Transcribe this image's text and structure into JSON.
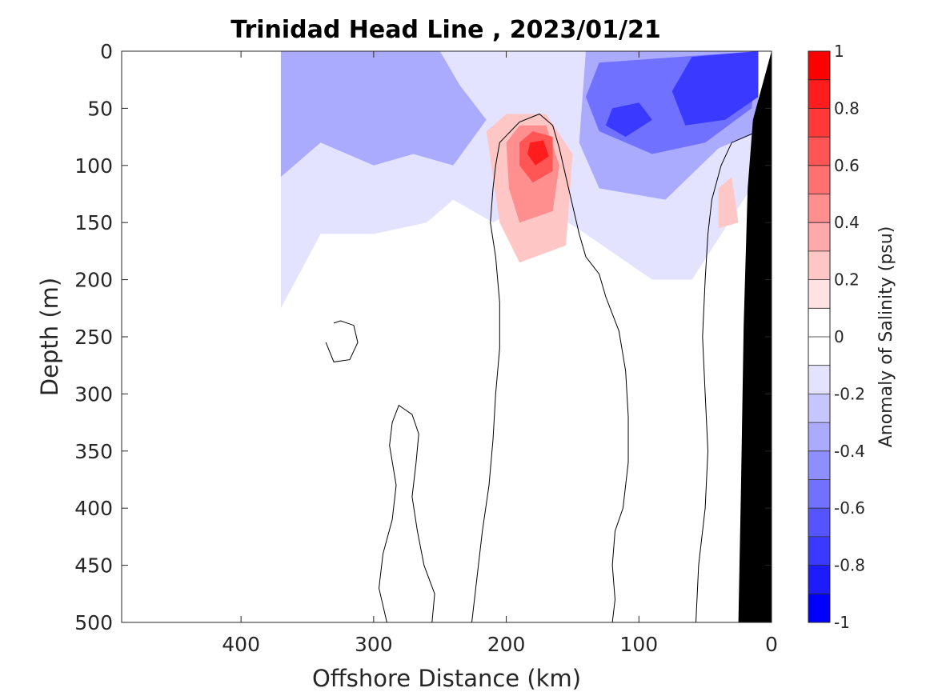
{
  "chart_data": {
    "type": "contour",
    "title": "Trinidad Head Line , 2023/01/21",
    "xlabel": "Offshore Distance (km)",
    "ylabel": "Depth (m)",
    "colorbar_label": "Anomaly of Salinity (psu)",
    "xlim": [
      490,
      0
    ],
    "ylim": [
      0,
      500
    ],
    "x_reversed": true,
    "y_reversed": true,
    "x_ticks": [
      400,
      300,
      200,
      100,
      0
    ],
    "y_ticks": [
      0,
      50,
      100,
      150,
      200,
      250,
      300,
      350,
      400,
      450,
      500
    ],
    "colorbar": {
      "range": [
        -1,
        1
      ],
      "ticks": [
        1,
        0.8,
        0.6,
        0.4,
        0.2,
        0,
        -0.2,
        -0.4,
        -0.6,
        -0.8,
        -1
      ],
      "colors": [
        "#0000ff",
        "#1c1cff",
        "#3939ff",
        "#5555ff",
        "#7171ff",
        "#8e8eff",
        "#aaaaff",
        "#c6c6ff",
        "#e3e3ff",
        "#ffffff",
        "#ffffff",
        "#ffe3e3",
        "#ffc6c6",
        "#ffaaaa",
        "#ff8e8e",
        "#ff7171",
        "#ff5555",
        "#ff3939",
        "#ff1c1c",
        "#ff0000"
      ]
    },
    "data_extent_x": [
      370,
      0
    ],
    "fill_regions": [
      {
        "level": -0.2,
        "points": [
          [
            370,
            0
          ],
          [
            10,
            0
          ],
          [
            10,
            110
          ],
          [
            60,
            200
          ],
          [
            90,
            200
          ],
          [
            140,
            160
          ],
          [
            180,
            130
          ],
          [
            210,
            150
          ],
          [
            240,
            130
          ],
          [
            260,
            150
          ],
          [
            300,
            160
          ],
          [
            340,
            160
          ],
          [
            370,
            225
          ]
        ]
      },
      {
        "level": -0.4,
        "points": [
          [
            370,
            0
          ],
          [
            250,
            0
          ],
          [
            235,
            30
          ],
          [
            215,
            60
          ],
          [
            240,
            100
          ],
          [
            270,
            90
          ],
          [
            300,
            100
          ],
          [
            340,
            80
          ],
          [
            370,
            110
          ]
        ]
      },
      {
        "level": -0.4,
        "points": [
          [
            140,
            0
          ],
          [
            10,
            0
          ],
          [
            10,
            70
          ],
          [
            40,
            85
          ],
          [
            80,
            130
          ],
          [
            130,
            120
          ],
          [
            145,
            80
          ]
        ]
      },
      {
        "level": -0.6,
        "points": [
          [
            130,
            10
          ],
          [
            10,
            0
          ],
          [
            15,
            50
          ],
          [
            50,
            80
          ],
          [
            90,
            90
          ],
          [
            130,
            70
          ],
          [
            140,
            40
          ]
        ]
      },
      {
        "level": -0.8,
        "points": [
          [
            120,
            50
          ],
          [
            100,
            45
          ],
          [
            90,
            60
          ],
          [
            110,
            75
          ],
          [
            125,
            65
          ]
        ]
      },
      {
        "level": -0.8,
        "points": [
          [
            60,
            5
          ],
          [
            10,
            0
          ],
          [
            10,
            40
          ],
          [
            35,
            60
          ],
          [
            65,
            65
          ],
          [
            75,
            35
          ]
        ]
      },
      {
        "level": 0.2,
        "points": [
          [
            215,
            70
          ],
          [
            200,
            55
          ],
          [
            170,
            55
          ],
          [
            150,
            90
          ],
          [
            155,
            170
          ],
          [
            190,
            185
          ],
          [
            205,
            150
          ]
        ]
      },
      {
        "level": 0.4,
        "points": [
          [
            200,
            80
          ],
          [
            190,
            65
          ],
          [
            170,
            65
          ],
          [
            160,
            100
          ],
          [
            165,
            140
          ],
          [
            190,
            150
          ],
          [
            198,
            120
          ]
        ]
      },
      {
        "level": 0.6,
        "points": [
          [
            190,
            80
          ],
          [
            180,
            70
          ],
          [
            165,
            75
          ],
          [
            165,
            105
          ],
          [
            180,
            115
          ],
          [
            190,
            100
          ]
        ]
      },
      {
        "level": 0.8,
        "points": [
          [
            182,
            80
          ],
          [
            172,
            78
          ],
          [
            168,
            92
          ],
          [
            178,
            100
          ],
          [
            184,
            90
          ]
        ]
      },
      {
        "level": 0.2,
        "points": [
          [
            40,
            120
          ],
          [
            30,
            110
          ],
          [
            25,
            150
          ],
          [
            40,
            155
          ]
        ]
      }
    ],
    "zero_contours": [
      {
        "points": [
          [
            330,
            238
          ],
          [
            325,
            236
          ],
          [
            315,
            240
          ],
          [
            312,
            255
          ],
          [
            318,
            270
          ],
          [
            330,
            272
          ],
          [
            336,
            255
          ]
        ]
      },
      {
        "points": [
          [
            290,
            500
          ],
          [
            296,
            470
          ],
          [
            293,
            440
          ],
          [
            286,
            410
          ],
          [
            283,
            380
          ],
          [
            288,
            345
          ],
          [
            286,
            325
          ],
          [
            281,
            310
          ],
          [
            271,
            318
          ],
          [
            266,
            335
          ],
          [
            268,
            360
          ],
          [
            271,
            390
          ],
          [
            267,
            420
          ],
          [
            262,
            450
          ],
          [
            254,
            475
          ],
          [
            256,
            500
          ]
        ]
      },
      {
        "points": [
          [
            226,
            500
          ],
          [
            222,
            460
          ],
          [
            218,
            420
          ],
          [
            213,
            380
          ],
          [
            210,
            340
          ],
          [
            208,
            300
          ],
          [
            205,
            260
          ],
          [
            205,
            220
          ],
          [
            208,
            180
          ],
          [
            212,
            150
          ],
          [
            210,
            120
          ],
          [
            208,
            100
          ],
          [
            205,
            80
          ],
          [
            190,
            62
          ],
          [
            175,
            55
          ],
          [
            165,
            65
          ],
          [
            160,
            85
          ],
          [
            155,
            110
          ],
          [
            150,
            135
          ],
          [
            145,
            160
          ],
          [
            140,
            180
          ],
          [
            130,
            195
          ],
          [
            125,
            215
          ],
          [
            115,
            245
          ],
          [
            110,
            280
          ],
          [
            108,
            320
          ],
          [
            108,
            360
          ],
          [
            112,
            400
          ],
          [
            118,
            420
          ],
          [
            120,
            450
          ],
          [
            118,
            480
          ],
          [
            120,
            500
          ]
        ]
      },
      {
        "points": [
          [
            57,
            500
          ],
          [
            55,
            450
          ],
          [
            50,
            400
          ],
          [
            48,
            350
          ],
          [
            50,
            300
          ],
          [
            52,
            250
          ],
          [
            50,
            200
          ],
          [
            48,
            160
          ],
          [
            45,
            130
          ],
          [
            38,
            100
          ],
          [
            30,
            80
          ],
          [
            20,
            75
          ],
          [
            10,
            70
          ],
          [
            8,
            60
          ]
        ]
      },
      {
        "points": [
          [
            12,
            140
          ],
          [
            10,
            150
          ],
          [
            12,
            160
          ]
        ]
      }
    ],
    "bathymetry": [
      [
        25,
        500
      ],
      [
        0,
        500
      ],
      [
        0,
        0
      ],
      [
        14,
        60
      ],
      [
        18,
        120
      ],
      [
        21,
        240
      ],
      [
        23,
        380
      ]
    ]
  }
}
